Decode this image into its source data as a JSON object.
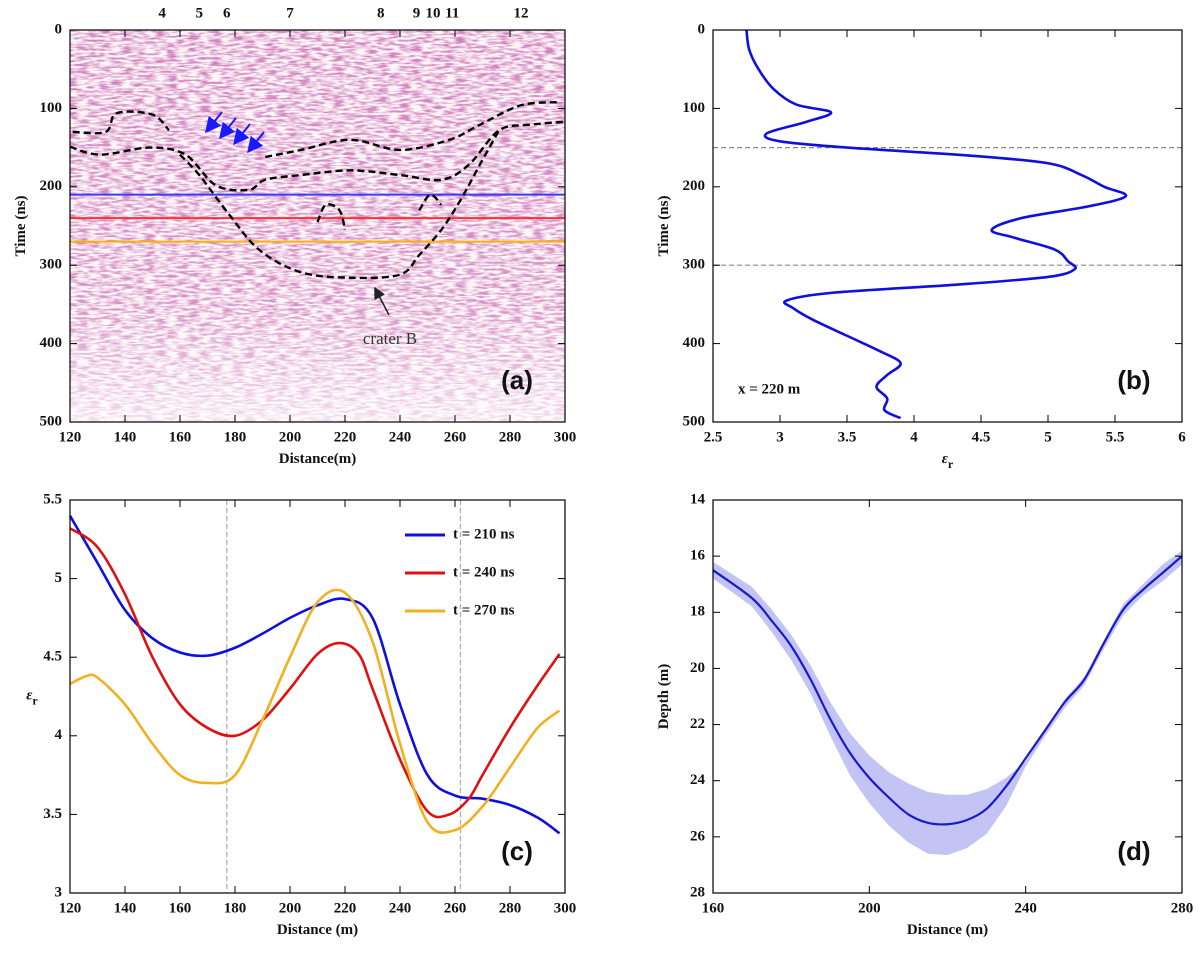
{
  "chart_data": [
    {
      "type": "line",
      "label": "(a)",
      "xlabel": "Distance(m)",
      "ylabel": "Time (ns)",
      "xlim": [
        120,
        300
      ],
      "xticks": [
        120,
        140,
        160,
        180,
        200,
        220,
        240,
        260,
        280,
        300
      ],
      "ylim": [
        0,
        500
      ],
      "yticks": [
        0,
        100,
        200,
        300,
        400,
        500
      ],
      "y_reversed": true,
      "hlines": [
        {
          "value": 210,
          "color": "#3b3bff"
        },
        {
          "value": 240,
          "color": "#ff3030"
        },
        {
          "value": 270,
          "color": "#ffb000"
        }
      ],
      "contours": [
        {
          "x": [
            121,
            133,
            137,
            150,
            156
          ],
          "values": [
            130,
            130,
            106,
            108,
            128
          ]
        },
        {
          "x": [
            191,
            204,
            222,
            240,
            258,
            269,
            284,
            298
          ],
          "values": [
            162,
            153,
            140,
            153,
            140,
            121,
            96,
            92
          ]
        },
        {
          "x": [
            120,
            131,
            149,
            162,
            173,
            185,
            191,
            204,
            222,
            240,
            255,
            265,
            276,
            287,
            300
          ],
          "values": [
            149,
            159,
            150,
            159,
            198,
            204,
            191,
            185,
            179,
            185,
            191,
            172,
            128,
            121,
            117
          ]
        },
        {
          "x": [
            160,
            167,
            178,
            189,
            204,
            222,
            240,
            247,
            255,
            262,
            269,
            276
          ],
          "values": [
            159,
            185,
            236,
            281,
            309,
            316,
            312,
            287,
            255,
            217,
            172,
            128
          ]
        },
        {
          "x": [
            210,
            213,
            218,
            220
          ],
          "values": [
            245,
            223,
            230,
            255
          ]
        },
        {
          "x": [
            247,
            251,
            255
          ],
          "values": [
            230,
            210,
            223
          ]
        }
      ],
      "top_markers": [
        {
          "x": 153.5,
          "label": "4"
        },
        {
          "x": 167,
          "label": "5"
        },
        {
          "x": 177,
          "label": "6"
        },
        {
          "x": 200,
          "label": "7"
        },
        {
          "x": 233,
          "label": "8"
        },
        {
          "x": 246,
          "label": "9"
        },
        {
          "x": 252,
          "label": "10"
        },
        {
          "x": 259,
          "label": "11"
        },
        {
          "x": 284,
          "label": "12"
        }
      ],
      "annotation": "crater B"
    },
    {
      "type": "line",
      "label": "(b)",
      "xlabel": "ε",
      "xlabel_sub": "r",
      "ylabel": "Time (ns)",
      "xlim": [
        2.5,
        6
      ],
      "xticks": [
        2.5,
        3,
        3.5,
        4,
        4.5,
        5,
        5.5,
        6
      ],
      "ylim": [
        0,
        500
      ],
      "yticks": [
        0,
        100,
        200,
        300,
        400,
        500
      ],
      "y_reversed": true,
      "hlines": [
        {
          "value": 150,
          "color": "#888888"
        },
        {
          "value": 300,
          "color": "#888888"
        }
      ],
      "series": [
        {
          "color": "#1010dd",
          "x": [
            2.75,
            2.77,
            2.84,
            2.95,
            3.12,
            3.38,
            3.2,
            2.9,
            3.0,
            3.5,
            4.4,
            5.0,
            5.25,
            5.42,
            5.58,
            5.3,
            4.8,
            4.58,
            4.75,
            5.05,
            5.15,
            5.2,
            5.0,
            4.3,
            3.4,
            3.05,
            3.1,
            3.25,
            3.5,
            3.75,
            3.9,
            3.8,
            3.72,
            3.8,
            3.78,
            3.9
          ],
          "values": [
            0,
            25,
            50,
            75,
            95,
            105,
            117,
            132,
            142,
            150,
            160,
            170,
            185,
            200,
            212,
            225,
            240,
            255,
            265,
            280,
            295,
            305,
            315,
            325,
            335,
            345,
            355,
            370,
            390,
            410,
            425,
            440,
            455,
            470,
            485,
            495
          ]
        }
      ],
      "annotation": "x = 220 m"
    },
    {
      "type": "line",
      "label": "(c)",
      "xlabel": "Distance (m)",
      "ylabel": "ε",
      "ylabel_sub": "r",
      "xlim": [
        120,
        300
      ],
      "xticks": [
        120,
        140,
        160,
        180,
        200,
        220,
        240,
        260,
        280,
        300
      ],
      "ylim": [
        3,
        5.5
      ],
      "yticks": [
        3,
        3.5,
        4,
        4.5,
        5,
        5.5
      ],
      "vlines": [
        {
          "value": 177,
          "color": "#aaaaaa"
        },
        {
          "value": 262,
          "color": "#aaaaaa"
        }
      ],
      "legend": "upper right",
      "series": [
        {
          "name": "t = 210 ns",
          "color": "#1010dd",
          "x": [
            120,
            130,
            140,
            150,
            160,
            170,
            180,
            190,
            200,
            210,
            220,
            230,
            240,
            250,
            260,
            270,
            280,
            290,
            298
          ],
          "values": [
            5.4,
            5.1,
            4.8,
            4.62,
            4.53,
            4.51,
            4.56,
            4.65,
            4.75,
            4.83,
            4.87,
            4.75,
            4.2,
            3.75,
            3.62,
            3.6,
            3.56,
            3.48,
            3.38
          ]
        },
        {
          "name": "t = 240 ns",
          "color": "#e01010",
          "x": [
            120,
            130,
            140,
            150,
            160,
            170,
            180,
            190,
            200,
            210,
            218,
            225,
            230,
            240,
            250,
            258,
            265,
            270,
            280,
            290,
            298
          ],
          "values": [
            5.32,
            5.2,
            4.9,
            4.5,
            4.2,
            4.05,
            4.0,
            4.1,
            4.3,
            4.52,
            4.59,
            4.52,
            4.3,
            3.85,
            3.52,
            3.5,
            3.6,
            3.75,
            4.05,
            4.32,
            4.52
          ]
        },
        {
          "name": "t = 270 ns",
          "color": "#f0b020",
          "x": [
            120,
            126,
            130,
            140,
            150,
            160,
            170,
            180,
            190,
            200,
            210,
            220,
            230,
            240,
            250,
            260,
            270,
            280,
            290,
            298
          ],
          "values": [
            4.33,
            4.38,
            4.37,
            4.2,
            3.95,
            3.75,
            3.7,
            3.75,
            4.1,
            4.5,
            4.85,
            4.91,
            4.6,
            3.95,
            3.45,
            3.4,
            3.55,
            3.8,
            4.05,
            4.16
          ]
        }
      ]
    },
    {
      "type": "line",
      "label": "(d)",
      "xlabel": "Distance (m)",
      "ylabel": "Depth (m)",
      "xlim": [
        160,
        280
      ],
      "xticks": [
        160,
        200,
        240,
        280
      ],
      "ylim": [
        14,
        28
      ],
      "yticks": [
        14,
        16,
        18,
        20,
        22,
        24,
        26,
        28
      ],
      "y_reversed": true,
      "color": "#1a1acc",
      "band_color": "#c4c4f4",
      "x": [
        160,
        170,
        175,
        180,
        185,
        190,
        195,
        200,
        205,
        210,
        215,
        220,
        225,
        230,
        235,
        240,
        245,
        250,
        255,
        260,
        265,
        270,
        275,
        280
      ],
      "values": [
        16.5,
        17.5,
        18.3,
        19.2,
        20.4,
        21.8,
        23,
        23.9,
        24.6,
        25.2,
        25.5,
        25.55,
        25.4,
        25.0,
        24.2,
        23.2,
        22.2,
        21.2,
        20.4,
        19.1,
        17.9,
        17.2,
        16.6,
        16.0
      ],
      "band_high": [
        16.2,
        17.1,
        17.9,
        18.8,
        19.9,
        21.2,
        22.3,
        23.1,
        23.7,
        24.1,
        24.4,
        24.5,
        24.5,
        24.3,
        23.9,
        23.3,
        22.2,
        21.1,
        20.3,
        19.0,
        17.7,
        17.0,
        16.3,
        15.8
      ],
      "band_low": [
        16.8,
        17.8,
        18.7,
        19.7,
        20.9,
        22.4,
        23.8,
        24.8,
        25.6,
        26.2,
        26.6,
        26.65,
        26.4,
        25.9,
        24.9,
        23.5,
        22.4,
        21.4,
        20.6,
        19.3,
        18.1,
        17.4,
        16.9,
        16.3
      ]
    }
  ]
}
